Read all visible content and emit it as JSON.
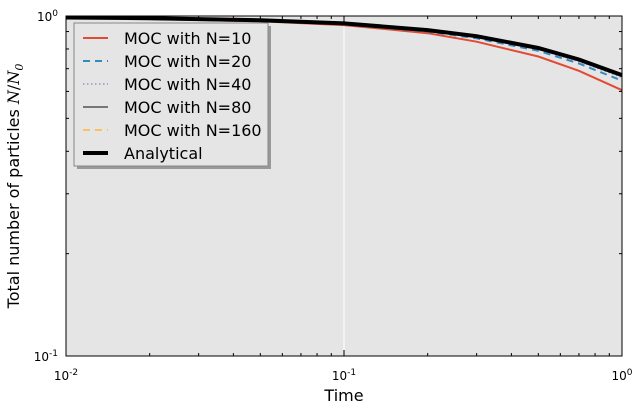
{
  "chart_data": {
    "type": "line",
    "title": "",
    "xlabel": "Time",
    "ylabel": "Total number of particles N/N0",
    "ylabel_main": "Total number of particles ",
    "ylabel_math_N": "N",
    "ylabel_math_slash": "/",
    "ylabel_math_N0": "N",
    "ylabel_math_sub": "0",
    "xscale": "log",
    "yscale": "log",
    "xlim": [
      0.01,
      1
    ],
    "ylim": [
      0.1,
      1
    ],
    "x_ticks": [
      {
        "base": "10",
        "exp": "-2"
      },
      {
        "base": "10",
        "exp": "-1"
      },
      {
        "base": "10",
        "exp": "0"
      }
    ],
    "y_ticks": [
      {
        "base": "10",
        "exp": "-1"
      },
      {
        "base": "10",
        "exp": "0"
      }
    ],
    "legend_position": "top-left",
    "grid": true,
    "background": "#e5e5e5",
    "x": [
      0.01,
      0.02,
      0.05,
      0.1,
      0.2,
      0.3,
      0.5,
      0.7,
      1.0
    ],
    "series": [
      {
        "name": "MOC with N=10",
        "color": "#e24a33",
        "style": "solid",
        "width": 2,
        "values": [
          0.99,
          0.98,
          0.965,
          0.94,
          0.89,
          0.84,
          0.76,
          0.69,
          0.605
        ]
      },
      {
        "name": "MOC with N=20",
        "color": "#348abd",
        "style": "dashed",
        "width": 2,
        "values": [
          0.99,
          0.985,
          0.97,
          0.945,
          0.9,
          0.86,
          0.79,
          0.725,
          0.645
        ]
      },
      {
        "name": "MOC with N=40",
        "color": "#988ed5",
        "style": "dotted",
        "width": 1.5,
        "values": [
          0.99,
          0.985,
          0.97,
          0.948,
          0.905,
          0.866,
          0.797,
          0.735,
          0.66
        ]
      },
      {
        "name": "MOC with N=80",
        "color": "#777777",
        "style": "solid",
        "width": 2,
        "values": [
          0.99,
          0.985,
          0.971,
          0.95,
          0.907,
          0.869,
          0.801,
          0.74,
          0.665
        ]
      },
      {
        "name": "MOC with N=160",
        "color": "#fbc15e",
        "style": "dashed",
        "width": 2,
        "values": [
          0.99,
          0.985,
          0.971,
          0.95,
          0.908,
          0.87,
          0.803,
          0.742,
          0.667
        ]
      },
      {
        "name": "Analytical",
        "color": "#000000",
        "style": "solid",
        "width": 4,
        "values": [
          0.99,
          0.985,
          0.972,
          0.951,
          0.909,
          0.872,
          0.805,
          0.745,
          0.67
        ]
      }
    ]
  }
}
